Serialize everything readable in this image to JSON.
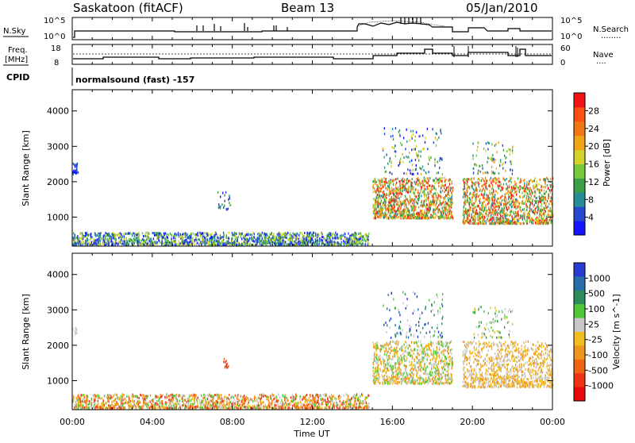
{
  "header": {
    "title": "Saskatoon (fitACF)",
    "beam": "Beam 13",
    "date": "05/Jan/2010"
  },
  "strip_panels": {
    "nsky": {
      "label": "N.Sky",
      "left_ticks": [
        "10^5",
        "10^0"
      ],
      "right_ticks": [
        "10^5",
        "10^0"
      ],
      "right_label": "N.Search",
      "right_dots": "........"
    },
    "freq": {
      "label_line1": "Freq.",
      "label_line2": "[MHz]",
      "left_ticks": [
        "18",
        "8"
      ],
      "right_ticks": [
        "60",
        "0"
      ],
      "right_label": "Nave",
      "right_dots": "...."
    },
    "cpid": {
      "label": "CPID",
      "program": "normalsound (fast) -157"
    }
  },
  "time_axis": {
    "label": "Time UT",
    "ticks": [
      "00:00",
      "04:00",
      "08:00",
      "12:00",
      "16:00",
      "20:00",
      "00:00"
    ]
  },
  "chart_data": [
    {
      "type": "heatmap",
      "quantity": "power",
      "ylabel": "Slant Range [km]",
      "yticks": [
        1000,
        2000,
        3000,
        4000
      ],
      "ylim": [
        180,
        4600
      ],
      "xlim_hours": [
        0,
        24
      ],
      "colorbar": {
        "label": "Power [dB]",
        "ticks": [
          "4",
          "8",
          "12",
          "16",
          "20",
          "24",
          "28"
        ],
        "colors": [
          "#1414ff",
          "#2848d2",
          "#288c96",
          "#3ca046",
          "#78c83c",
          "#d2d228",
          "#f0a514",
          "#f07814",
          "#ff5014",
          "#f01414"
        ]
      }
    },
    {
      "type": "heatmap",
      "quantity": "velocity",
      "ylabel": "Slant Range [km]",
      "yticks": [
        1000,
        2000,
        3000,
        4000
      ],
      "ylim": [
        180,
        4600
      ],
      "xlim_hours": [
        0,
        24
      ],
      "colorbar": {
        "label": "Velocity [m s^-1]",
        "ticks": [
          "1000",
          "500",
          "100",
          "25",
          "-25",
          "-100",
          "-500",
          "-1000"
        ],
        "colors": [
          "#283cd2",
          "#286eaa",
          "#2d8c5a",
          "#50c83c",
          "#c8c8c8",
          "#f0be1e",
          "#f0961e",
          "#f06414",
          "#f03214",
          "#e60a0a"
        ]
      }
    }
  ]
}
